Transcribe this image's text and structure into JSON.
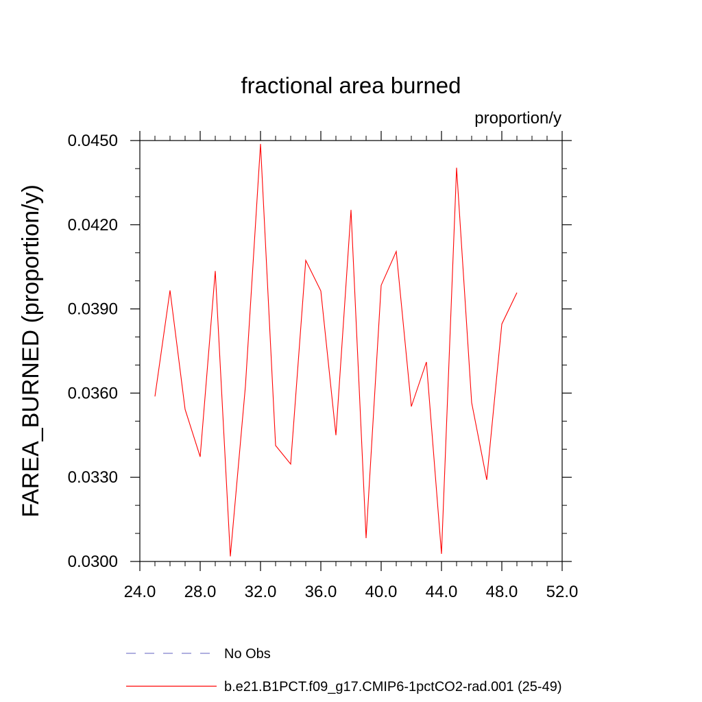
{
  "chart_data": {
    "type": "line",
    "title": "fractional area burned",
    "units_label": "proportion/y",
    "ylabel": "FAREA_BURNED  (proportion/y)",
    "xlabel": "",
    "xlim": [
      24,
      52
    ],
    "ylim": [
      0.03,
      0.045
    ],
    "x_ticks": [
      24,
      28,
      32,
      36,
      40,
      44,
      48,
      52
    ],
    "x_tick_labels": [
      "24.0",
      "28.0",
      "32.0",
      "36.0",
      "40.0",
      "44.0",
      "48.0",
      "52.0"
    ],
    "y_ticks": [
      0.03,
      0.033,
      0.036,
      0.039,
      0.042,
      0.045
    ],
    "y_tick_labels": [
      "0.0300",
      "0.0330",
      "0.0360",
      "0.0390",
      "0.0420",
      "0.0450"
    ],
    "x_minor_step": 1,
    "y_minor_step": 0.001,
    "grid": false,
    "legend_position": "bottom",
    "series": [
      {
        "name": "b.e21.B1PCT.f09_g17.CMIP6-1pctCO2-rad.001 (25-49)",
        "color": "#ff0000",
        "style": "solid",
        "x": [
          25,
          26,
          27,
          28,
          29,
          30,
          31,
          32,
          33,
          34,
          35,
          36,
          37,
          38,
          39,
          40,
          41,
          42,
          43,
          44,
          45,
          46,
          47,
          48,
          49
        ],
        "y": [
          0.03588,
          0.03966,
          0.03542,
          0.03373,
          0.04035,
          0.03018,
          0.03625,
          0.04488,
          0.03413,
          0.03347,
          0.04073,
          0.03964,
          0.0345,
          0.04253,
          0.03083,
          0.03984,
          0.04105,
          0.03552,
          0.03711,
          0.03027,
          0.04403,
          0.03566,
          0.03291,
          0.03846,
          0.03958
        ]
      }
    ],
    "legend": [
      {
        "label": "No Obs",
        "color": "#7f7fcc",
        "style": "dashed"
      },
      {
        "label": "b.e21.B1PCT.f09_g17.CMIP6-1pctCO2-rad.001 (25-49)",
        "color": "#ff0000",
        "style": "solid"
      }
    ]
  }
}
